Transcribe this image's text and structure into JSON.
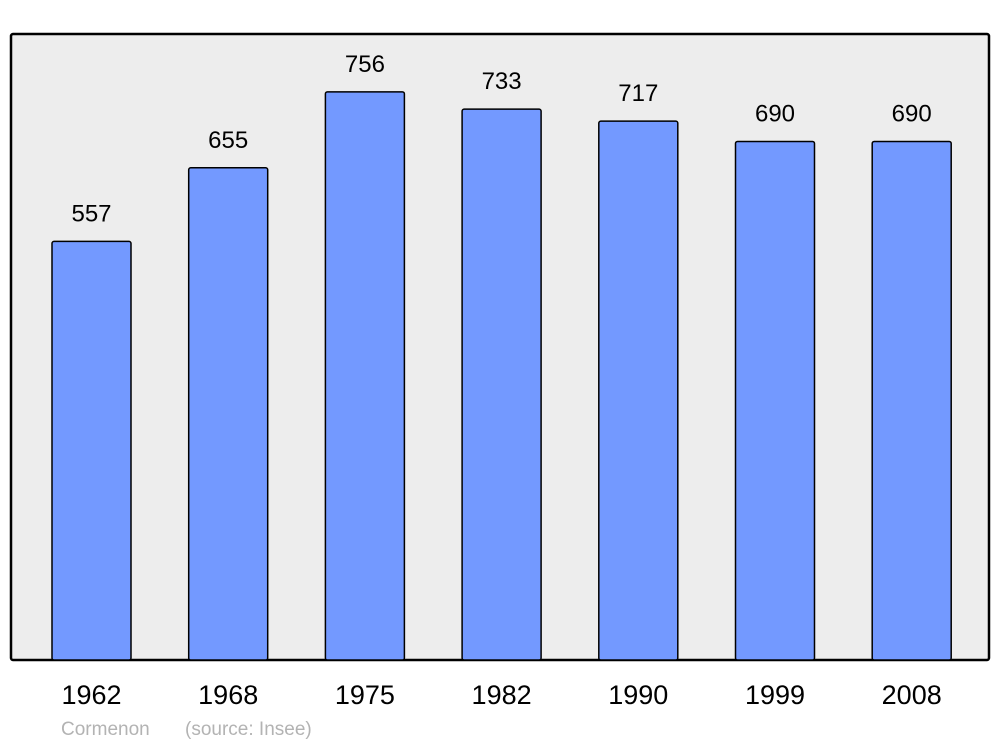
{
  "chart_data": {
    "type": "bar",
    "title": "",
    "xlabel": "",
    "ylabel": "",
    "categories": [
      "1962",
      "1968",
      "1975",
      "1982",
      "1990",
      "1999",
      "2008"
    ],
    "values": [
      557,
      655,
      756,
      733,
      717,
      690,
      690
    ],
    "ylim": [
      0,
      833
    ],
    "grid": false,
    "data_labels": true,
    "colors": {
      "bar": "#7399ff",
      "plot_background": "#ededed",
      "border": "#000000"
    }
  },
  "footer": {
    "place": "Cormenon",
    "source": "(source: Insee)"
  }
}
